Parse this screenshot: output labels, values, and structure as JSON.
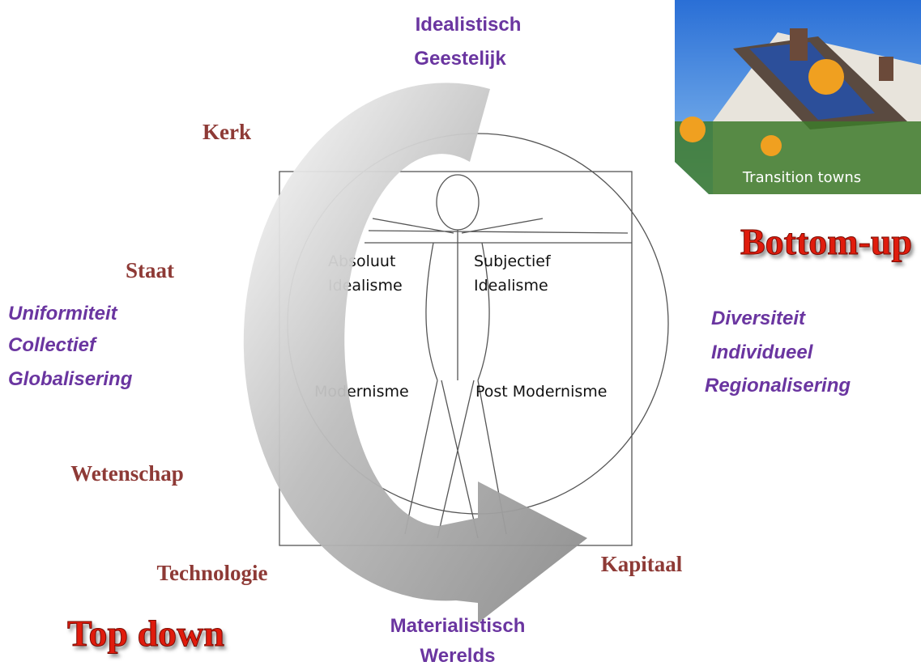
{
  "top_labels": [
    "Idealistisch",
    "Geestelijk"
  ],
  "bottom_labels": [
    "Materialistisch",
    "Werelds"
  ],
  "left_labels": [
    "Kerk",
    "Staat",
    "Wetenschap",
    "Technologie"
  ],
  "right_labels": [
    "Kapitaal"
  ],
  "left_values": [
    "Uniformiteit",
    "Collectief",
    "Globalisering"
  ],
  "right_values": [
    "Diversiteit",
    "Individueel",
    "Regionalisering"
  ],
  "quadrants": [
    [
      "Absoluut",
      "Idealisme"
    ],
    [
      "Subjectief",
      "Idealisme"
    ],
    [
      "Modernisme"
    ],
    [
      "Post Modernisme"
    ]
  ],
  "headings": {
    "top_down": "Top down",
    "bottom_up": "Bottom-up"
  },
  "photo": {
    "caption": "Transition towns"
  }
}
